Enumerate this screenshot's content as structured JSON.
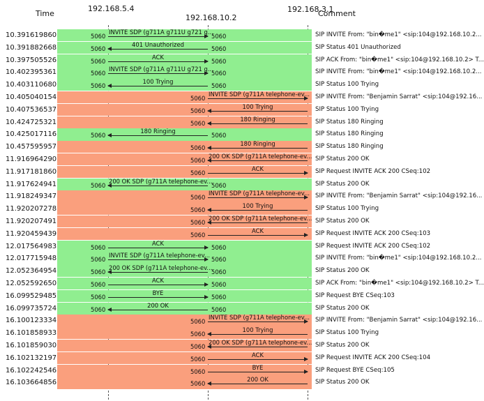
{
  "header": {
    "time_label": "Time",
    "comment_label": "Comment",
    "hosts": [
      "192.168.5.4",
      "192.168.10.2",
      "192.168.3.1"
    ]
  },
  "colors": {
    "green": "#90ee90",
    "orange": "#fa9f7d"
  },
  "rows": [
    {
      "time": "10.391619860",
      "color": "g",
      "from": 0,
      "to": 1,
      "src_port": "5060",
      "dst_port": "5060",
      "label": "INVITE SDP (g711A g711U g721 g...",
      "comment": "SIP INVITE From: \"bin�me1\" <sip:104@192.168.10.2..."
    },
    {
      "time": "10.391882668",
      "color": "g",
      "from": 1,
      "to": 0,
      "src_port": "5060",
      "dst_port": "5060",
      "label": "401 Unauthorized",
      "comment": "SIP Status 401 Unauthorized"
    },
    {
      "time": "10.397505526",
      "color": "g",
      "from": 0,
      "to": 1,
      "src_port": "5060",
      "dst_port": "5060",
      "label": "ACK",
      "comment": "SIP ACK From: \"bin�me1\" <sip:104@192.168.10.2> T..."
    },
    {
      "time": "10.402395361",
      "color": "g",
      "from": 0,
      "to": 1,
      "src_port": "5060",
      "dst_port": "5060",
      "label": "INVITE SDP (g711A g711U g721 g...",
      "comment": "SIP INVITE From: \"bin�me1\" <sip:104@192.168.10.2..."
    },
    {
      "time": "10.403110680",
      "color": "g",
      "from": 1,
      "to": 0,
      "src_port": "5060",
      "dst_port": "5060",
      "label": "100 Trying",
      "comment": "SIP Status 100 Trying"
    },
    {
      "time": "10.405040154",
      "color": "o",
      "from": 1,
      "to": 2,
      "src_port": "5060",
      "dst_port": "",
      "label": "INVITE SDP (g711A telephone-ev...",
      "comment": "SIP INVITE From: \"Benjamin Sarrat\" <sip:104@192.16..."
    },
    {
      "time": "10.407536537",
      "color": "o",
      "from": 2,
      "to": 1,
      "src_port": "",
      "dst_port": "5060",
      "label": "100 Trying",
      "comment": "SIP Status 100 Trying"
    },
    {
      "time": "10.424725321",
      "color": "o",
      "from": 2,
      "to": 1,
      "src_port": "",
      "dst_port": "5060",
      "label": "180 Ringing",
      "comment": "SIP Status 180 Ringing"
    },
    {
      "time": "10.425017116",
      "color": "g",
      "from": 1,
      "to": 0,
      "src_port": "5060",
      "dst_port": "5060",
      "label": "180 Ringing",
      "comment": "SIP Status 180 Ringing"
    },
    {
      "time": "10.457595957",
      "color": "o",
      "from": 2,
      "to": 1,
      "src_port": "",
      "dst_port": "5060",
      "label": "180 Ringing",
      "comment": "SIP Status 180 Ringing"
    },
    {
      "time": "11.916964290",
      "color": "o",
      "from": 2,
      "to": 1,
      "src_port": "",
      "dst_port": "5060",
      "label": "200 OK SDP (g711A telephone-ev...",
      "comment": "SIP Status 200 OK"
    },
    {
      "time": "11.917181860",
      "color": "o",
      "from": 1,
      "to": 2,
      "src_port": "5060",
      "dst_port": "",
      "label": "ACK",
      "comment": "SIP Request INVITE ACK 200 CSeq:102"
    },
    {
      "time": "11.917624941",
      "color": "g",
      "from": 1,
      "to": 0,
      "src_port": "5060",
      "dst_port": "5060",
      "label": "200 OK SDP (g711A telephone-ev...",
      "comment": "SIP Status 200 OK"
    },
    {
      "time": "11.918249347",
      "color": "o",
      "from": 1,
      "to": 2,
      "src_port": "5060",
      "dst_port": "",
      "label": "INVITE SDP (g711A telephone-ev...",
      "comment": "SIP INVITE From: \"Benjamin Sarrat\" <sip:104@192.16..."
    },
    {
      "time": "11.920207278",
      "color": "o",
      "from": 2,
      "to": 1,
      "src_port": "",
      "dst_port": "5060",
      "label": "100 Trying",
      "comment": "SIP Status 100 Trying"
    },
    {
      "time": "11.920207491",
      "color": "o",
      "from": 2,
      "to": 1,
      "src_port": "",
      "dst_port": "5060",
      "label": "200 OK SDP (g711A telephone-ev...",
      "comment": "SIP Status 200 OK"
    },
    {
      "time": "11.920459439",
      "color": "o",
      "from": 1,
      "to": 2,
      "src_port": "5060",
      "dst_port": "",
      "label": "ACK",
      "comment": "SIP Request INVITE ACK 200 CSeq:103"
    },
    {
      "time": "12.017564983",
      "color": "g",
      "from": 0,
      "to": 1,
      "src_port": "5060",
      "dst_port": "5060",
      "label": "ACK",
      "comment": "SIP Request INVITE ACK 200 CSeq:102"
    },
    {
      "time": "12.017715948",
      "color": "g",
      "from": 0,
      "to": 1,
      "src_port": "5060",
      "dst_port": "5060",
      "label": "INVITE SDP (g711A telephone-ev...",
      "comment": "SIP INVITE From: \"bin�me1\" <sip:104@192.168.10.2..."
    },
    {
      "time": "12.052364954",
      "color": "g",
      "from": 1,
      "to": 0,
      "src_port": "5060",
      "dst_port": "5060",
      "label": "200 OK SDP (g711A telephone-ev...",
      "comment": "SIP Status 200 OK"
    },
    {
      "time": "12.052592650",
      "color": "g",
      "from": 0,
      "to": 1,
      "src_port": "5060",
      "dst_port": "5060",
      "label": "ACK",
      "comment": "SIP ACK From: \"bin�me1\" <sip:104@192.168.10.2> T..."
    },
    {
      "time": "16.099529485",
      "color": "g",
      "from": 0,
      "to": 1,
      "src_port": "5060",
      "dst_port": "5060",
      "label": "BYE",
      "comment": "SIP Request BYE CSeq:103"
    },
    {
      "time": "16.099735724",
      "color": "g",
      "from": 1,
      "to": 0,
      "src_port": "5060",
      "dst_port": "5060",
      "label": "200 OK",
      "comment": "SIP Status 200 OK"
    },
    {
      "time": "16.100123334",
      "color": "o",
      "from": 1,
      "to": 2,
      "src_port": "5060",
      "dst_port": "",
      "label": "INVITE SDP (g711A telephone-ev...",
      "comment": "SIP INVITE From: \"Benjamin Sarrat\" <sip:104@192.16..."
    },
    {
      "time": "16.101858933",
      "color": "o",
      "from": 2,
      "to": 1,
      "src_port": "",
      "dst_port": "5060",
      "label": "100 Trying",
      "comment": "SIP Status 100 Trying"
    },
    {
      "time": "16.101859030",
      "color": "o",
      "from": 2,
      "to": 1,
      "src_port": "",
      "dst_port": "5060",
      "label": "200 OK SDP (g711A telephone-ev...",
      "comment": "SIP Status 200 OK"
    },
    {
      "time": "16.102132197",
      "color": "o",
      "from": 1,
      "to": 2,
      "src_port": "5060",
      "dst_port": "",
      "label": "ACK",
      "comment": "SIP Request INVITE ACK 200 CSeq:104"
    },
    {
      "time": "16.102242546",
      "color": "o",
      "from": 1,
      "to": 2,
      "src_port": "5060",
      "dst_port": "",
      "label": "BYE",
      "comment": "SIP Request BYE CSeq:105"
    },
    {
      "time": "16.103664856",
      "color": "o",
      "from": 2,
      "to": 1,
      "src_port": "",
      "dst_port": "5060",
      "label": "200 OK",
      "comment": "SIP Status 200 OK"
    }
  ]
}
